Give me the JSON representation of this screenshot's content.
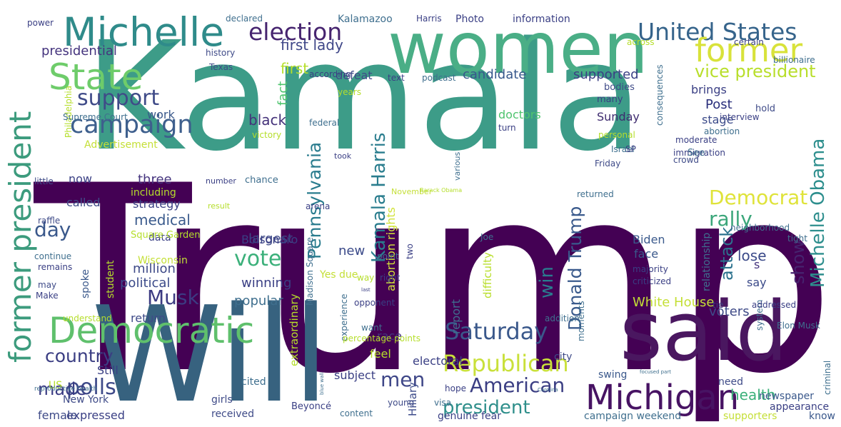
{
  "words": [
    {
      "text": "Trump",
      "color": "#440154"
    },
    {
      "text": "Kamala",
      "color": "#3d9c88"
    },
    {
      "text": "Will",
      "color": "#37627f"
    },
    {
      "text": "women",
      "color": "#4aae86"
    },
    {
      "text": "said",
      "color": "#4a1760"
    },
    {
      "text": "Michelle",
      "color": "#2f8b8a"
    },
    {
      "text": "former president",
      "color": "#3c9b7d"
    },
    {
      "text": "State",
      "color": "#6ecc6a"
    },
    {
      "text": "Democratic",
      "color": "#5fc06c"
    },
    {
      "text": "Michigan",
      "color": "#471363"
    },
    {
      "text": "United States",
      "color": "#36648b"
    },
    {
      "text": "former",
      "color": "#d8e23a"
    },
    {
      "text": "election",
      "color": "#46246f"
    },
    {
      "text": "campaign",
      "color": "#3e5f8d"
    },
    {
      "text": "support",
      "color": "#3f4b88"
    },
    {
      "text": "vice president",
      "color": "#b8de2b"
    },
    {
      "text": "Michelle Obama",
      "color": "#2d8e8d"
    },
    {
      "text": "Kamala Harris",
      "color": "#2a7d8e"
    },
    {
      "text": "Pennsylvania",
      "color": "#2a7c8e"
    },
    {
      "text": "Donald Trump",
      "color": "#3a5a8c"
    },
    {
      "text": "Saturday",
      "color": "#3a588b"
    },
    {
      "text": "Republican",
      "color": "#c9e03a"
    },
    {
      "text": "American",
      "color": "#3b3e83"
    },
    {
      "text": "president",
      "color": "#2f8f8b"
    },
    {
      "text": "country",
      "color": "#3b3e83"
    },
    {
      "text": "Musk",
      "color": "#3c3b82"
    },
    {
      "text": "polls",
      "color": "#3e4a89"
    },
    {
      "text": "men",
      "color": "#3f4788"
    },
    {
      "text": "Democrat",
      "color": "#dfe33a"
    },
    {
      "text": "rally",
      "color": "#3ba67a"
    },
    {
      "text": "win",
      "color": "#2a7b8e"
    },
    {
      "text": "show",
      "color": "#46246f"
    },
    {
      "text": "attack",
      "color": "#2c728e"
    },
    {
      "text": "vote",
      "color": "#3bb07a"
    },
    {
      "text": "day",
      "color": "#3a588b"
    },
    {
      "text": "made",
      "color": "#3a3b83"
    },
    {
      "text": "black",
      "color": "#44327a"
    },
    {
      "text": "first lady",
      "color": "#3f4788"
    },
    {
      "text": "presidential",
      "color": "#45347e"
    },
    {
      "text": "first",
      "color": "#b5de2b"
    },
    {
      "text": "candidate",
      "color": "#38588c"
    },
    {
      "text": "supported",
      "color": "#3a3f84"
    },
    {
      "text": "Post",
      "color": "#2a2f7c"
    },
    {
      "text": "stage",
      "color": "#3b4a89"
    },
    {
      "text": "Sunday",
      "color": "#3e2b6f"
    },
    {
      "text": "Biden",
      "color": "#3b5a8c"
    },
    {
      "text": "face",
      "color": "#3a588b"
    },
    {
      "text": "voters",
      "color": "#3f4b88"
    },
    {
      "text": "White House",
      "color": "#c4df36"
    },
    {
      "text": "health",
      "color": "#3bb07a"
    },
    {
      "text": "lose",
      "color": "#3b4a89"
    },
    {
      "text": "s",
      "color": "#45347e"
    },
    {
      "text": "say",
      "color": "#3b4a89"
    },
    {
      "text": "largest",
      "color": "#3f4b88"
    },
    {
      "text": "Bolsonaro",
      "color": "#3a3f84"
    },
    {
      "text": "medical",
      "color": "#3a5a8c"
    },
    {
      "text": "three",
      "color": "#45347e"
    },
    {
      "text": "million",
      "color": "#3f4b88"
    },
    {
      "text": "political",
      "color": "#3b4a89"
    },
    {
      "text": "popular",
      "color": "#3f6f8e"
    },
    {
      "text": "winning",
      "color": "#3a3f84"
    },
    {
      "text": "new",
      "color": "#3b4a89"
    },
    {
      "text": "abortion rights",
      "color": "#d2e23a"
    },
    {
      "text": "report",
      "color": "#3f6f8e"
    },
    {
      "text": "difficulty",
      "color": "#b8de2b"
    },
    {
      "text": "fact",
      "color": "#4ec46e"
    },
    {
      "text": "defeat",
      "color": "#3f4b88"
    },
    {
      "text": "doctors",
      "color": "#4ec46e"
    },
    {
      "text": "work",
      "color": "#3a588b"
    },
    {
      "text": "Advertisement",
      "color": "#c4df36"
    },
    {
      "text": "now",
      "color": "#3a3f84"
    },
    {
      "text": "including",
      "color": "#b5de2b"
    },
    {
      "text": "called",
      "color": "#3f4b88"
    },
    {
      "text": "strategy",
      "color": "#3a3f84"
    },
    {
      "text": "Wisconsin",
      "color": "#c4df36"
    },
    {
      "text": "data",
      "color": "#3a3f84"
    },
    {
      "text": "student",
      "color": "#b5de2b"
    },
    {
      "text": "spoke",
      "color": "#3a588b"
    },
    {
      "text": "return",
      "color": "#3f4b88"
    },
    {
      "text": "race",
      "color": "#45347e"
    },
    {
      "text": "feel",
      "color": "#b5de2b"
    },
    {
      "text": "electoral",
      "color": "#3a3f84"
    },
    {
      "text": "subject",
      "color": "#3a3f84"
    },
    {
      "text": "Hillary",
      "color": "#3b4a89"
    },
    {
      "text": "extraordinary",
      "color": "#b5de2b"
    },
    {
      "text": "Still",
      "color": "#3a3f84"
    },
    {
      "text": "expressed",
      "color": "#3a3f84"
    },
    {
      "text": "female",
      "color": "#3f4b88"
    },
    {
      "text": "US",
      "color": "#b5de2b"
    },
    {
      "text": "New York",
      "color": "#3f4b88"
    },
    {
      "text": "cited",
      "color": "#3f6f8e"
    },
    {
      "text": "girls",
      "color": "#3f4b88"
    },
    {
      "text": "received",
      "color": "#3f4b88"
    },
    {
      "text": "Beyoncé",
      "color": "#3a3f84"
    },
    {
      "text": "content",
      "color": "#3f6f8e"
    },
    {
      "text": "genuine fear",
      "color": "#3a3f84"
    },
    {
      "text": "city",
      "color": "#3f4b88"
    },
    {
      "text": "campaign weekend",
      "color": "#3f6f8e"
    },
    {
      "text": "supporters",
      "color": "#c4df36"
    },
    {
      "text": "know",
      "color": "#3a588b"
    },
    {
      "text": "appearance",
      "color": "#3a3f84"
    },
    {
      "text": "newspaper",
      "color": "#3a588b"
    },
    {
      "text": "criminal",
      "color": "#3f6f8e"
    },
    {
      "text": "swing",
      "color": "#3a588b"
    },
    {
      "text": "need",
      "color": "#3f4b88"
    },
    {
      "text": "addition",
      "color": "#3f6f8e"
    },
    {
      "text": "moments",
      "color": "#3f6f8e"
    },
    {
      "text": "hope",
      "color": "#3a3f84"
    },
    {
      "text": "visa",
      "color": "#3f6f8e"
    },
    {
      "text": "young",
      "color": "#3f4b88"
    },
    {
      "text": "want",
      "color": "#3f6f8e"
    },
    {
      "text": "opponent",
      "color": "#3a3f84"
    },
    {
      "text": "Yes due",
      "color": "#c4df36"
    },
    {
      "text": "Madison Square",
      "color": "#3f6f8e"
    },
    {
      "text": "two",
      "color": "#3a3f84"
    },
    {
      "text": "point",
      "color": "#3f6f8e"
    },
    {
      "text": "right",
      "color": "#3a3f84"
    },
    {
      "text": "way",
      "color": "#b5de2b"
    },
    {
      "text": "Joe",
      "color": "#3f6f8e"
    },
    {
      "text": "arena",
      "color": "#3a3f84"
    },
    {
      "text": "result",
      "color": "#b5de2b"
    },
    {
      "text": "number",
      "color": "#3a3f84"
    },
    {
      "text": "November",
      "color": "#c4df36"
    },
    {
      "text": "little",
      "color": "#3f4b88"
    },
    {
      "text": "raffle",
      "color": "#3f4b88"
    },
    {
      "text": "Square Garden",
      "color": "#b5de2b"
    },
    {
      "text": "continue",
      "color": "#3f6f8e"
    },
    {
      "text": "remains",
      "color": "#3a3f84"
    },
    {
      "text": "may",
      "color": "#3f4b88"
    },
    {
      "text": "Make",
      "color": "#3a3f84"
    },
    {
      "text": "understand",
      "color": "#b5de2b"
    },
    {
      "text": "Philadelphia",
      "color": "#b5de2b"
    },
    {
      "text": "Supreme Court",
      "color": "#3f6f8e"
    },
    {
      "text": "Texas",
      "color": "#3f4b88"
    },
    {
      "text": "history",
      "color": "#3f4b88"
    },
    {
      "text": "power",
      "color": "#3a3f84"
    },
    {
      "text": "declared",
      "color": "#3f6f8e"
    },
    {
      "text": "Kalamazoo",
      "color": "#3f6f8e"
    },
    {
      "text": "Harris",
      "color": "#3a3f84"
    },
    {
      "text": "Photo",
      "color": "#3a3f84"
    },
    {
      "text": "information",
      "color": "#3a3f84"
    },
    {
      "text": "according",
      "color": "#3a3f84"
    },
    {
      "text": "podcast",
      "color": "#3f6f8e"
    },
    {
      "text": "text",
      "color": "#3a3f84"
    },
    {
      "text": "years",
      "color": "#b5de2b"
    },
    {
      "text": "federal",
      "color": "#3f6f8e"
    },
    {
      "text": "victory",
      "color": "#b5de2b"
    },
    {
      "text": "took",
      "color": "#3a3f84"
    },
    {
      "text": "various",
      "color": "#3f6f8e"
    },
    {
      "text": "turn",
      "color": "#3a3f84"
    },
    {
      "text": "many",
      "color": "#3a3f84"
    },
    {
      "text": "bodies",
      "color": "#3f4b88"
    },
    {
      "text": "brings",
      "color": "#3a3f84"
    },
    {
      "text": "across",
      "color": "#b5de2b"
    },
    {
      "text": "certain",
      "color": "#3a3f84"
    },
    {
      "text": "billionaire",
      "color": "#3f6f8e"
    },
    {
      "text": "consequences",
      "color": "#3f6f8e"
    },
    {
      "text": "hold",
      "color": "#3f4b88"
    },
    {
      "text": "interview",
      "color": "#3a3f84"
    },
    {
      "text": "abortion",
      "color": "#3f6f8e"
    },
    {
      "text": "Israel",
      "color": "#3f6f8e"
    },
    {
      "text": "personal",
      "color": "#b5de2b"
    },
    {
      "text": "moderate",
      "color": "#3a3f84"
    },
    {
      "text": "immigration",
      "color": "#3a3f84"
    },
    {
      "text": "Friday",
      "color": "#3f4b88"
    },
    {
      "text": "See",
      "color": "#3f6f8e"
    },
    {
      "text": "SP",
      "color": "#3a3f84"
    },
    {
      "text": "crowd",
      "color": "#3f4b88"
    },
    {
      "text": "chance",
      "color": "#3f6f8e"
    },
    {
      "text": "returned",
      "color": "#3f6f8e"
    },
    {
      "text": "majority",
      "color": "#3a3f84"
    },
    {
      "text": "criticized",
      "color": "#3a3f84"
    },
    {
      "text": "tight",
      "color": "#3f6f8e"
    },
    {
      "text": "neighborhood",
      "color": "#3f6f8e"
    },
    {
      "text": "relationship",
      "color": "#3f6f8e"
    },
    {
      "text": "system",
      "color": "#3f6f8e"
    },
    {
      "text": "tie",
      "color": "#3a3f84"
    },
    {
      "text": "addressed",
      "color": "#3a3f84"
    },
    {
      "text": "Elon Musk",
      "color": "#3f6f8e"
    },
    {
      "text": "Barack Obama",
      "color": "#b5de2b"
    },
    {
      "text": "reproductive health",
      "color": "#3f6f8e"
    },
    {
      "text": "focused part",
      "color": "#3f6f8e"
    },
    {
      "text": "blue wall",
      "color": "#3f6f8e"
    },
    {
      "text": "Carolina",
      "color": "#3f6f8e"
    },
    {
      "text": "last",
      "color": "#3a3f84"
    },
    {
      "text": "experience",
      "color": "#3f6f8e"
    },
    {
      "text": "percentage points",
      "color": "#b5de2b"
    }
  ]
}
